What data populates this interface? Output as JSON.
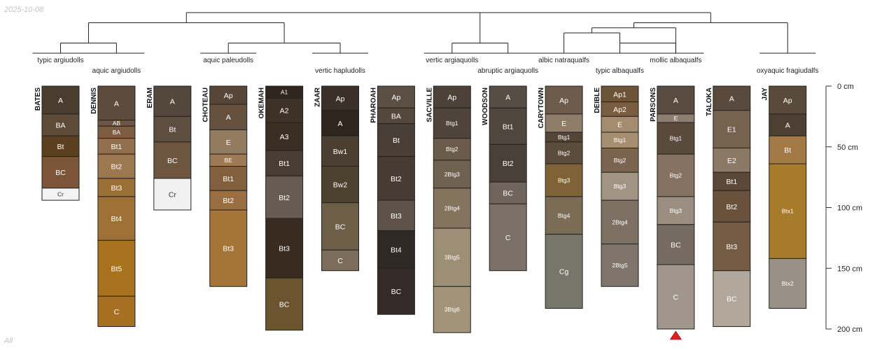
{
  "date_stamp": "2025-10-08",
  "footer_note": "All",
  "depth_axis": {
    "unit": "cm",
    "max": 200,
    "ticks": [
      {
        "value": 0,
        "label": "0 cm"
      },
      {
        "value": 50,
        "label": "50 cm"
      },
      {
        "value": 100,
        "label": "100 cm"
      },
      {
        "value": 150,
        "label": "150 cm"
      },
      {
        "value": 200,
        "label": "200 cm"
      }
    ]
  },
  "taxa": [
    "typic argiudolls",
    "aquic argiudolls",
    "aquic paleudolls",
    "vertic hapludolls",
    "vertic argiaquolls",
    "abruptic argiaquolls",
    "albic natraqualfs",
    "typic albaqualfs",
    "mollic albaqualfs",
    "oxyaquic fragiudalfs"
  ],
  "profiles": [
    {
      "name": "BATES",
      "horizons": [
        {
          "name": "A",
          "top": 0,
          "bottom": 23,
          "color": "#4a3d30"
        },
        {
          "name": "BA",
          "top": 23,
          "bottom": 41,
          "color": "#5e4a37"
        },
        {
          "name": "Bt",
          "top": 41,
          "bottom": 58,
          "color": "#5c3f1f"
        },
        {
          "name": "BC",
          "top": 58,
          "bottom": 84,
          "color": "#7c5538"
        },
        {
          "name": "Cr",
          "top": 84,
          "bottom": 94,
          "color": "#f3f3f3"
        }
      ]
    },
    {
      "name": "DENNIS",
      "horizons": [
        {
          "name": "A",
          "top": 0,
          "bottom": 28,
          "color": "#5d4c3e"
        },
        {
          "name": "AB",
          "top": 28,
          "bottom": 33,
          "color": "#6c5541"
        },
        {
          "name": "BA",
          "top": 33,
          "bottom": 43,
          "color": "#7c5d42"
        },
        {
          "name": "Bt1",
          "top": 43,
          "bottom": 56,
          "color": "#93704d"
        },
        {
          "name": "Bt2",
          "top": 56,
          "bottom": 76,
          "color": "#9c7850"
        },
        {
          "name": "Bt3",
          "top": 76,
          "bottom": 91,
          "color": "#9a7036"
        },
        {
          "name": "Bt4",
          "top": 91,
          "bottom": 127,
          "color": "#9e7236"
        },
        {
          "name": "Bt5",
          "top": 127,
          "bottom": 173,
          "color": "#a8721f"
        },
        {
          "name": "C",
          "top": 173,
          "bottom": 198,
          "color": "#a76f21"
        }
      ]
    },
    {
      "name": "ERAM",
      "horizons": [
        {
          "name": "A",
          "top": 0,
          "bottom": 25,
          "color": "#54473b"
        },
        {
          "name": "Bt",
          "top": 25,
          "bottom": 46,
          "color": "#5d4e40"
        },
        {
          "name": "BC",
          "top": 46,
          "bottom": 76,
          "color": "#6d5640"
        },
        {
          "name": "Cr",
          "top": 76,
          "bottom": 102,
          "color": "#f1f1f1"
        }
      ]
    },
    {
      "name": "CHOTEAU",
      "horizons": [
        {
          "name": "Ap",
          "top": 0,
          "bottom": 15,
          "color": "#574537"
        },
        {
          "name": "A",
          "top": 15,
          "bottom": 36,
          "color": "#66513f"
        },
        {
          "name": "E",
          "top": 36,
          "bottom": 56,
          "color": "#937b60"
        },
        {
          "name": "BE",
          "top": 56,
          "bottom": 66,
          "color": "#9c7a53"
        },
        {
          "name": "Bt1",
          "top": 66,
          "bottom": 86,
          "color": "#81603f"
        },
        {
          "name": "Bt2",
          "top": 86,
          "bottom": 102,
          "color": "#9a6e40"
        },
        {
          "name": "Bt3",
          "top": 102,
          "bottom": 165,
          "color": "#a57538"
        }
      ]
    },
    {
      "name": "OKEMAH",
      "horizons": [
        {
          "name": "A1",
          "top": 0,
          "bottom": 10,
          "color": "#2f251f"
        },
        {
          "name": "A2",
          "top": 10,
          "bottom": 30,
          "color": "#3e3226"
        },
        {
          "name": "A3",
          "top": 30,
          "bottom": 53,
          "color": "#3a2d21"
        },
        {
          "name": "Bt1",
          "top": 53,
          "bottom": 74,
          "color": "#493d33"
        },
        {
          "name": "Bt2",
          "top": 74,
          "bottom": 109,
          "color": "#675c51"
        },
        {
          "name": "Bt3",
          "top": 109,
          "bottom": 158,
          "color": "#392b20"
        },
        {
          "name": "BC",
          "top": 158,
          "bottom": 201,
          "color": "#6c5430"
        }
      ]
    },
    {
      "name": "ZAAR",
      "horizons": [
        {
          "name": "Ap",
          "top": 0,
          "bottom": 20,
          "color": "#3b3029"
        },
        {
          "name": "A",
          "top": 20,
          "bottom": 41,
          "color": "#2e251e"
        },
        {
          "name": "Bw1",
          "top": 41,
          "bottom": 66,
          "color": "#4a3f31"
        },
        {
          "name": "Bw2",
          "top": 66,
          "bottom": 96,
          "color": "#4d4230"
        },
        {
          "name": "BC",
          "top": 96,
          "bottom": 135,
          "color": "#6d5e48"
        },
        {
          "name": "C",
          "top": 135,
          "bottom": 152,
          "color": "#7b6d5a"
        }
      ]
    },
    {
      "name": "PHAROAH",
      "horizons": [
        {
          "name": "Ap",
          "top": 0,
          "bottom": 18,
          "color": "#5b4e43"
        },
        {
          "name": "BA",
          "top": 18,
          "bottom": 31,
          "color": "#54473c"
        },
        {
          "name": "Bt",
          "top": 31,
          "bottom": 58,
          "color": "#4a3f36"
        },
        {
          "name": "Bt2",
          "top": 58,
          "bottom": 94,
          "color": "#473b33"
        },
        {
          "name": "Bt3",
          "top": 94,
          "bottom": 119,
          "color": "#5f5349"
        },
        {
          "name": "Bt4",
          "top": 119,
          "bottom": 150,
          "color": "#2f2823"
        },
        {
          "name": "BC",
          "top": 150,
          "bottom": 188,
          "color": "#342b26"
        }
      ]
    },
    {
      "name": "SACVILLE",
      "horizons": [
        {
          "name": "Ap",
          "top": 0,
          "bottom": 18,
          "color": "#4c4238"
        },
        {
          "name": "Btg1",
          "top": 18,
          "bottom": 43,
          "color": "#4f4439"
        },
        {
          "name": "Btg2",
          "top": 43,
          "bottom": 61,
          "color": "#6a5b4a"
        },
        {
          "name": "2Btg3",
          "top": 61,
          "bottom": 84,
          "color": "#706250"
        },
        {
          "name": "2Btg4",
          "top": 84,
          "bottom": 117,
          "color": "#84735d"
        },
        {
          "name": "3Btg5",
          "top": 117,
          "bottom": 165,
          "color": "#9d8e76"
        },
        {
          "name": "3Btg6",
          "top": 165,
          "bottom": 203,
          "color": "#a29379"
        }
      ]
    },
    {
      "name": "WOODSON",
      "horizons": [
        {
          "name": "A",
          "top": 0,
          "bottom": 18,
          "color": "#564d45"
        },
        {
          "name": "Bt1",
          "top": 18,
          "bottom": 48,
          "color": "#4f463e"
        },
        {
          "name": "Bt2",
          "top": 48,
          "bottom": 79,
          "color": "#4a403a"
        },
        {
          "name": "BC",
          "top": 79,
          "bottom": 97,
          "color": "#6f655c"
        },
        {
          "name": "C",
          "top": 97,
          "bottom": 152,
          "color": "#7b7169"
        }
      ]
    },
    {
      "name": "CARYTOWN",
      "horizons": [
        {
          "name": "Ap",
          "top": 0,
          "bottom": 23,
          "color": "#6d5b4b"
        },
        {
          "name": "E",
          "top": 23,
          "bottom": 38,
          "color": "#8f7d69"
        },
        {
          "name": "Btg1",
          "top": 38,
          "bottom": 46,
          "color": "#534638"
        },
        {
          "name": "Btg2",
          "top": 46,
          "bottom": 64,
          "color": "#5c4c3b"
        },
        {
          "name": "Btg3",
          "top": 64,
          "bottom": 91,
          "color": "#7f6337"
        },
        {
          "name": "Btg4",
          "top": 91,
          "bottom": 122,
          "color": "#7b6c55"
        },
        {
          "name": "Cg",
          "top": 122,
          "bottom": 183,
          "color": "#77766a"
        }
      ]
    },
    {
      "name": "DEIBLE",
      "horizons": [
        {
          "name": "Ap1",
          "top": 0,
          "bottom": 13,
          "color": "#6c5439"
        },
        {
          "name": "Ap2",
          "top": 13,
          "bottom": 25,
          "color": "#7a5c3e"
        },
        {
          "name": "E",
          "top": 25,
          "bottom": 38,
          "color": "#a38d6e"
        },
        {
          "name": "Btg1",
          "top": 38,
          "bottom": 51,
          "color": "#a68e70"
        },
        {
          "name": "Btg2",
          "top": 51,
          "bottom": 71,
          "color": "#7a6450"
        },
        {
          "name": "Btg3",
          "top": 71,
          "bottom": 94,
          "color": "#a19485"
        },
        {
          "name": "2Btg4",
          "top": 94,
          "bottom": 130,
          "color": "#7d7062"
        },
        {
          "name": "2Btg5",
          "top": 130,
          "bottom": 165,
          "color": "#7f756b"
        }
      ]
    },
    {
      "name": "PARSONS",
      "horizons": [
        {
          "name": "A",
          "top": 0,
          "bottom": 23,
          "color": "#5a4b40"
        },
        {
          "name": "E",
          "top": 23,
          "bottom": 30,
          "color": "#8e7e6f"
        },
        {
          "name": "Btg1",
          "top": 30,
          "bottom": 56,
          "color": "#594a3c"
        },
        {
          "name": "Btg2",
          "top": 56,
          "bottom": 91,
          "color": "#857260"
        },
        {
          "name": "Btg3",
          "top": 91,
          "bottom": 114,
          "color": "#9b8e80"
        },
        {
          "name": "BC",
          "top": 114,
          "bottom": 147,
          "color": "#766b61"
        },
        {
          "name": "C",
          "top": 147,
          "bottom": 200,
          "color": "#a0968b"
        }
      ]
    },
    {
      "name": "TALOKA",
      "horizons": [
        {
          "name": "A",
          "top": 0,
          "bottom": 20,
          "color": "#5a4a3d"
        },
        {
          "name": "E1",
          "top": 20,
          "bottom": 51,
          "color": "#75624f"
        },
        {
          "name": "E2",
          "top": 51,
          "bottom": 71,
          "color": "#8b7865"
        },
        {
          "name": "Bt1",
          "top": 71,
          "bottom": 86,
          "color": "#5c4837"
        },
        {
          "name": "Bt2",
          "top": 86,
          "bottom": 112,
          "color": "#6a513b"
        },
        {
          "name": "Bt3",
          "top": 112,
          "bottom": 152,
          "color": "#755c44"
        },
        {
          "name": "BC",
          "top": 152,
          "bottom": 198,
          "color": "#b2a79b"
        }
      ]
    },
    {
      "name": "JAY",
      "horizons": [
        {
          "name": "Ap",
          "top": 0,
          "bottom": 23,
          "color": "#5a4a3b"
        },
        {
          "name": "A",
          "top": 23,
          "bottom": 41,
          "color": "#4d4033"
        },
        {
          "name": "Bt",
          "top": 41,
          "bottom": 64,
          "color": "#a37945"
        },
        {
          "name": "Btx1",
          "top": 64,
          "bottom": 142,
          "color": "#a87b2c"
        },
        {
          "name": "Btx2",
          "top": 142,
          "bottom": 183,
          "color": "#9a9186"
        }
      ]
    }
  ],
  "marker": {
    "profile": "PARSONS",
    "color": "#e02020"
  },
  "dendrogram": {
    "leaves": [
      {
        "taxon": "typic argiudolls",
        "profile": "BATES"
      },
      {
        "taxon": "aquic argiudolls",
        "profile": "DENNIS"
      },
      {
        "taxon": "aquic paleudolls",
        "profile": "CHOTEAU"
      },
      {
        "taxon": "vertic hapludolls",
        "profile": "ZAAR"
      },
      {
        "taxon": "vertic argiaquolls",
        "profile": "SACVILLE"
      },
      {
        "taxon": "abruptic argiaquolls",
        "profile": "WOODSON"
      },
      {
        "taxon": "albic natraqualfs",
        "profile": "CARYTOWN"
      },
      {
        "taxon": "typic albaqualfs",
        "profile": "DEIBLE"
      },
      {
        "taxon": "mollic albaqualfs",
        "profile": "PARSONS"
      },
      {
        "taxon": "oxyaquic fragiudalfs",
        "profile": "JAY"
      }
    ],
    "merges": [
      {
        "a": "L1",
        "b": "L2",
        "height": 1.0
      },
      {
        "a": "L3",
        "b": "L4",
        "height": 1.0
      },
      {
        "a": "M1",
        "b": "M2",
        "height": 3.0
      },
      {
        "a": "L5",
        "b": "L6",
        "height": 1.0
      },
      {
        "a": "M3",
        "b": "M4",
        "height": 4.0
      },
      {
        "a": "L7",
        "b": "L8",
        "height": 2.0
      },
      {
        "a": "M6",
        "b": "L9",
        "height": 2.5
      },
      {
        "a": "M7",
        "b": "L0",
        "height": 3.0
      },
      {
        "a": "L8",
        "b": "L9",
        "height": 1.0
      },
      {
        "a": "M5",
        "b": "M8",
        "height": 4.0
      }
    ]
  }
}
